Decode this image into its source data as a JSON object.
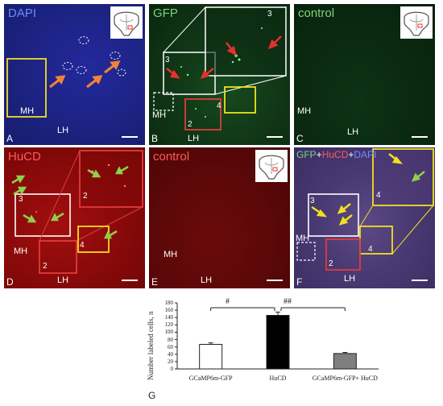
{
  "panels": {
    "a": {
      "letter": "A",
      "title": "DAPI",
      "title_color": "#6a8cff",
      "regions": [
        "MH",
        "LH"
      ]
    },
    "b": {
      "letter": "B",
      "title": "GFP",
      "title_color": "#7dd67d",
      "regions": [
        "MH",
        "LH"
      ],
      "boxes": [
        "2",
        "3",
        "4",
        "3"
      ]
    },
    "c": {
      "letter": "C",
      "title": "control",
      "title_color": "#7dd67d",
      "regions": [
        "MH",
        "LH"
      ]
    },
    "d": {
      "letter": "D",
      "title": "HuCD",
      "title_color": "#ff5a5a",
      "regions": [
        "MH",
        "LH"
      ],
      "boxes": [
        "2",
        "3",
        "4",
        "2"
      ]
    },
    "e": {
      "letter": "E",
      "title": "control",
      "title_color": "#ff5a5a",
      "regions": [
        "MH",
        "LH"
      ]
    },
    "f": {
      "letter": "F",
      "title_parts": [
        "GFP",
        "+",
        "HuCD",
        "+",
        "DAPI"
      ],
      "title_colors": [
        "#7dd67d",
        "#ffffff",
        "#ff5a5a",
        "#ffffff",
        "#6a8cff"
      ],
      "regions": [
        "MH",
        "LH"
      ],
      "boxes": [
        "2",
        "3",
        "4",
        "4"
      ]
    }
  },
  "graph_letter": "G",
  "chart_data": {
    "type": "bar",
    "categories": [
      "GCaMP6m-GFP",
      "HuCD",
      "GCaMP6m-GFP+ HuCD"
    ],
    "values": [
      67,
      146,
      42
    ],
    "errors": [
      4,
      9,
      3
    ],
    "fill_colors": [
      "#ffffff",
      "#000000",
      "#7f7f7f"
    ],
    "ylabel": "Number labeled cells, n",
    "ylim": [
      0,
      180
    ],
    "yticks": [
      0,
      20,
      40,
      60,
      80,
      100,
      120,
      140,
      160,
      180
    ],
    "significance": [
      "#",
      "##"
    ]
  }
}
